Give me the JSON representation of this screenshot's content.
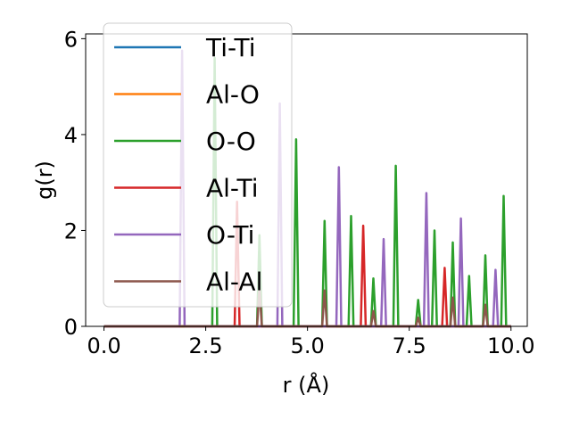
{
  "chart_data": {
    "type": "line",
    "xlabel": "r (Å)",
    "ylabel": "g(r)",
    "xlim": [
      -0.45,
      10.4
    ],
    "ylim": [
      0,
      6.1
    ],
    "xticks": [
      0.0,
      2.5,
      5.0,
      7.5,
      10.0
    ],
    "xtick_labels": [
      "0.0",
      "2.5",
      "5.0",
      "7.5",
      "10.0"
    ],
    "yticks": [
      0,
      2,
      4,
      6
    ],
    "ytick_labels": [
      "0",
      "2",
      "4",
      "6"
    ],
    "grid": false,
    "legend_position": "upper-left",
    "peak_half_width": 0.06,
    "series": [
      {
        "name": "Ti-Ti",
        "color": "#1f77b4",
        "peaks": []
      },
      {
        "name": "Al-O",
        "color": "#ff7f0e",
        "peaks": []
      },
      {
        "name": "O-O",
        "color": "#2ca02c",
        "peaks": [
          {
            "r": 2.72,
            "g": 5.6
          },
          {
            "r": 3.82,
            "g": 1.9
          },
          {
            "r": 4.72,
            "g": 3.9
          },
          {
            "r": 5.42,
            "g": 2.2
          },
          {
            "r": 6.07,
            "g": 2.3
          },
          {
            "r": 6.62,
            "g": 1.0
          },
          {
            "r": 7.17,
            "g": 3.35
          },
          {
            "r": 7.72,
            "g": 0.55
          },
          {
            "r": 8.12,
            "g": 2.0
          },
          {
            "r": 8.57,
            "g": 1.75
          },
          {
            "r": 8.97,
            "g": 1.05
          },
          {
            "r": 9.37,
            "g": 1.48
          },
          {
            "r": 9.82,
            "g": 2.72
          }
        ]
      },
      {
        "name": "Al-Ti",
        "color": "#d62728",
        "peaks": [
          {
            "r": 3.27,
            "g": 2.6
          },
          {
            "r": 6.37,
            "g": 2.1
          },
          {
            "r": 8.37,
            "g": 1.22
          }
        ]
      },
      {
        "name": "O-Ti",
        "color": "#9467bd",
        "peaks": [
          {
            "r": 1.92,
            "g": 5.75
          },
          {
            "r": 4.32,
            "g": 4.65
          },
          {
            "r": 5.77,
            "g": 3.32
          },
          {
            "r": 6.87,
            "g": 1.82
          },
          {
            "r": 7.92,
            "g": 2.78
          },
          {
            "r": 8.77,
            "g": 2.25
          },
          {
            "r": 9.62,
            "g": 1.18
          }
        ]
      },
      {
        "name": "Al-Al",
        "color": "#8c564b",
        "peaks": [
          {
            "r": 3.82,
            "g": 0.8
          },
          {
            "r": 5.42,
            "g": 0.75
          },
          {
            "r": 6.62,
            "g": 0.32
          },
          {
            "r": 7.72,
            "g": 0.18
          },
          {
            "r": 8.57,
            "g": 0.6
          },
          {
            "r": 9.37,
            "g": 0.45
          }
        ]
      }
    ]
  }
}
